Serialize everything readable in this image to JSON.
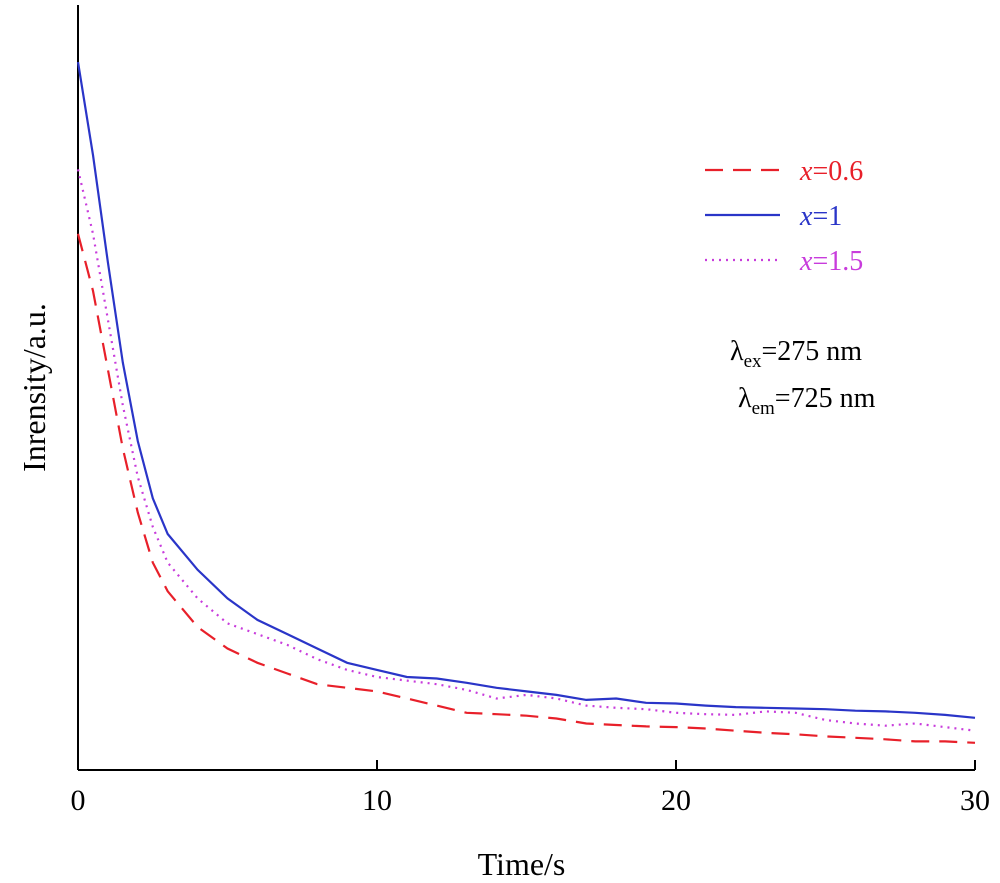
{
  "chart_data": {
    "type": "line",
    "xlabel": "Time/s",
    "ylabel": "Inrensity/a.u.",
    "xlim": [
      0,
      30
    ],
    "ylim": [
      0,
      1.0
    ],
    "xticks": [
      "0",
      "10",
      "20",
      "30"
    ],
    "grid": false,
    "legend_position": "top-right",
    "annotations": [
      {
        "symbol": "λ",
        "sub": "ex",
        "text": "=275 nm"
      },
      {
        "symbol": "λ",
        "sub": "em",
        "text": "=725 nm"
      }
    ],
    "series": [
      {
        "name": "x=0.6",
        "legend_var": "x",
        "legend_rest": "=0.6",
        "color": "#e8202a",
        "style": "dashed",
        "x": [
          0,
          0.5,
          1,
          1.5,
          2,
          2.5,
          3,
          4,
          5,
          6,
          7,
          8,
          9,
          10,
          11,
          12,
          13,
          14,
          15,
          16,
          17,
          18,
          19,
          20,
          21,
          22,
          23,
          24,
          25,
          26,
          27,
          28,
          29,
          30
        ],
        "y": [
          0.75,
          0.67,
          0.56,
          0.45,
          0.36,
          0.29,
          0.25,
          0.2,
          0.17,
          0.15,
          0.135,
          0.12,
          0.115,
          0.11,
          0.1,
          0.09,
          0.08,
          0.078,
          0.076,
          0.072,
          0.065,
          0.063,
          0.061,
          0.06,
          0.058,
          0.055,
          0.052,
          0.05,
          0.047,
          0.045,
          0.043,
          0.04,
          0.04,
          0.038
        ]
      },
      {
        "name": "x=1",
        "legend_var": "x",
        "legend_rest": "=1",
        "color": "#2a35c8",
        "style": "solid",
        "x": [
          0,
          0.5,
          1,
          1.5,
          2,
          2.5,
          3,
          4,
          5,
          6,
          7,
          8,
          9,
          10,
          11,
          12,
          13,
          14,
          15,
          16,
          17,
          18,
          19,
          20,
          21,
          22,
          23,
          24,
          25,
          26,
          27,
          28,
          29,
          30
        ],
        "y": [
          0.99,
          0.86,
          0.71,
          0.57,
          0.46,
          0.38,
          0.33,
          0.28,
          0.24,
          0.21,
          0.19,
          0.17,
          0.15,
          0.14,
          0.13,
          0.128,
          0.122,
          0.115,
          0.11,
          0.105,
          0.098,
          0.1,
          0.094,
          0.093,
          0.09,
          0.088,
          0.087,
          0.086,
          0.085,
          0.083,
          0.082,
          0.08,
          0.077,
          0.073
        ]
      },
      {
        "name": "x=1.5",
        "legend_var": "x",
        "legend_rest": "=1.5",
        "color": "#c83cdc",
        "style": "dotted",
        "x": [
          0,
          0.5,
          1,
          1.5,
          2,
          2.5,
          3,
          4,
          5,
          6,
          7,
          8,
          9,
          10,
          11,
          12,
          13,
          14,
          15,
          16,
          17,
          18,
          19,
          20,
          21,
          22,
          23,
          24,
          25,
          26,
          27,
          28,
          29,
          30
        ],
        "y": [
          0.84,
          0.75,
          0.63,
          0.51,
          0.41,
          0.34,
          0.29,
          0.24,
          0.205,
          0.19,
          0.175,
          0.155,
          0.14,
          0.13,
          0.125,
          0.12,
          0.112,
          0.1,
          0.105,
          0.1,
          0.09,
          0.087,
          0.085,
          0.08,
          0.078,
          0.077,
          0.082,
          0.08,
          0.07,
          0.065,
          0.062,
          0.065,
          0.06,
          0.055
        ]
      }
    ]
  }
}
